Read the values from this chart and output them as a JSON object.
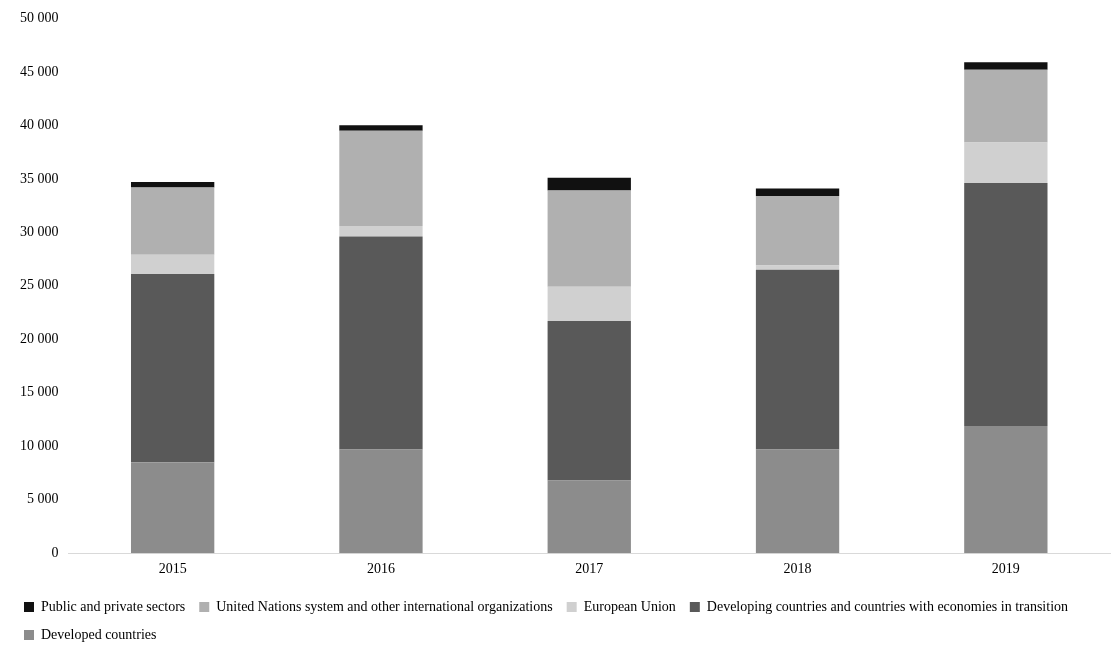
{
  "chart_data": {
    "type": "bar",
    "stacked": true,
    "categories": [
      "2015",
      "2016",
      "2017",
      "2018",
      "2019"
    ],
    "series": [
      {
        "name": "Developed countries",
        "color": "#8c8c8c",
        "values": [
          8500,
          9700,
          6800,
          9700,
          11900
        ]
      },
      {
        "name": "Developing countries and countries with economies in transition",
        "color": "#595959",
        "values": [
          17600,
          19900,
          14900,
          16800,
          22700
        ]
      },
      {
        "name": "European Union",
        "color": "#d0d0d0",
        "values": [
          1800,
          1000,
          3200,
          400,
          3800
        ]
      },
      {
        "name": "United Nations system and other international organizations",
        "color": "#b0b0b0",
        "values": [
          6300,
          8900,
          9000,
          6500,
          6800
        ]
      },
      {
        "name": "Public and private sectors",
        "color": "#111111",
        "values": [
          500,
          500,
          1200,
          700,
          700
        ]
      }
    ],
    "ylim": [
      0,
      50000
    ],
    "yticks": [
      {
        "value": 0,
        "label": "0"
      },
      {
        "value": 5000,
        "label": "5 000"
      },
      {
        "value": 10000,
        "label": "10 000"
      },
      {
        "value": 15000,
        "label": "15 000"
      },
      {
        "value": 20000,
        "label": "20 000"
      },
      {
        "value": 25000,
        "label": "25 000"
      },
      {
        "value": 30000,
        "label": "30 000"
      },
      {
        "value": 35000,
        "label": "35 000"
      },
      {
        "value": 40000,
        "label": "40 000"
      },
      {
        "value": 45000,
        "label": "45 000"
      },
      {
        "value": 50000,
        "label": "50 000"
      }
    ],
    "grid": false,
    "legend": "bottom"
  }
}
